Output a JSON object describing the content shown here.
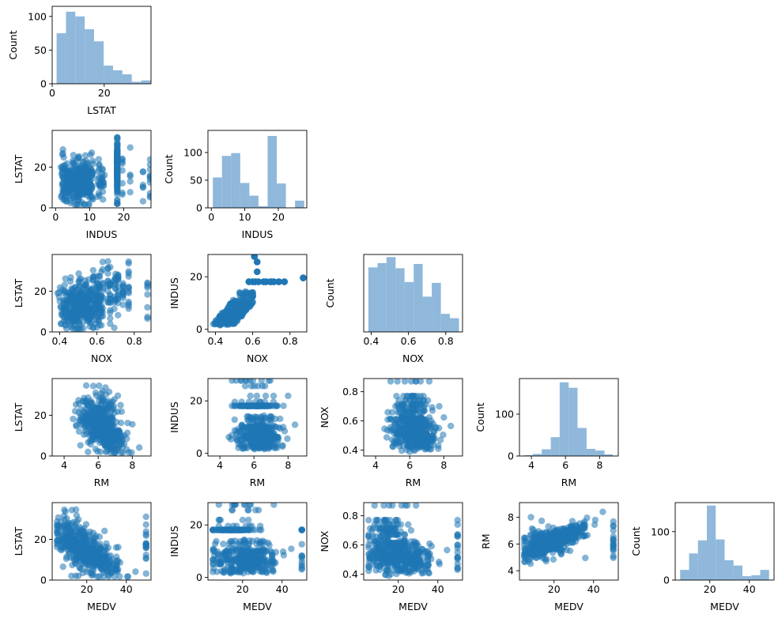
{
  "chart_data": {
    "type": "pairplot",
    "layout": "lower-triangle",
    "variables": [
      "LSTAT",
      "INDUS",
      "NOX",
      "RM",
      "MEDV"
    ],
    "diag_ylabel": "Count",
    "colors": {
      "hist": "#8fb8db",
      "point": "#1f77b4",
      "point_opacity": 0.55
    },
    "panels": [
      {
        "row": 0,
        "col": 0,
        "kind": "hist",
        "xlabel": "LSTAT",
        "ylabel": "Count",
        "xlim": [
          0,
          38
        ],
        "ylim": [
          0,
          115
        ],
        "xticks": [
          0,
          20
        ],
        "yticks": [
          0,
          50,
          100
        ],
        "bins": [
          1.7,
          5.3,
          8.9,
          12.5,
          16.1,
          19.8,
          23.4,
          27.0,
          30.6,
          34.2,
          37.8
        ],
        "counts": [
          75,
          107,
          100,
          81,
          63,
          27,
          20,
          14,
          3,
          5
        ]
      },
      {
        "row": 1,
        "col": 0,
        "kind": "scatter",
        "xvar": "INDUS",
        "yvar": "LSTAT",
        "xlabel": "INDUS",
        "ylabel": "LSTAT",
        "xlim": [
          -1,
          28
        ],
        "ylim": [
          0,
          38
        ],
        "xticks": [
          0,
          10,
          20
        ],
        "yticks": [
          0,
          20
        ]
      },
      {
        "row": 1,
        "col": 1,
        "kind": "hist",
        "xlabel": "INDUS",
        "ylabel": "Count",
        "xlim": [
          -1,
          28.5
        ],
        "ylim": [
          0,
          140
        ],
        "xticks": [
          0,
          10,
          20
        ],
        "yticks": [
          0,
          50,
          100
        ],
        "bins": [
          0.46,
          3.19,
          5.91,
          8.64,
          11.37,
          14.09,
          16.82,
          19.55,
          22.27,
          25.0,
          27.74
        ],
        "counts": [
          55,
          94,
          99,
          45,
          22,
          3,
          130,
          44,
          0,
          13
        ]
      },
      {
        "row": 2,
        "col": 0,
        "kind": "scatter",
        "xvar": "NOX",
        "yvar": "LSTAT",
        "xlabel": "NOX",
        "ylabel": "LSTAT",
        "xlim": [
          0.36,
          0.89
        ],
        "ylim": [
          0,
          38
        ],
        "xticks": [
          0.4,
          0.6,
          0.8
        ],
        "yticks": [
          0,
          20
        ]
      },
      {
        "row": 2,
        "col": 1,
        "kind": "scatter",
        "xvar": "NOX",
        "yvar": "INDUS",
        "xlabel": "NOX",
        "ylabel": "INDUS",
        "xlim": [
          0.36,
          0.89
        ],
        "ylim": [
          -1,
          28.5
        ],
        "xticks": [
          0.4,
          0.6,
          0.8
        ],
        "yticks": [
          0,
          20
        ]
      },
      {
        "row": 2,
        "col": 2,
        "kind": "hist",
        "xlabel": "NOX",
        "ylabel": "Count",
        "xlim": [
          0.36,
          0.89
        ],
        "ylim": [
          0,
          90
        ],
        "xticks": [
          0.4,
          0.6,
          0.8
        ],
        "yticks": [],
        "bins": [
          0.385,
          0.434,
          0.482,
          0.531,
          0.579,
          0.628,
          0.676,
          0.725,
          0.774,
          0.822,
          0.871
        ],
        "counts": [
          75,
          80,
          87,
          74,
          58,
          79,
          41,
          57,
          21,
          16
        ]
      },
      {
        "row": 3,
        "col": 0,
        "kind": "scatter",
        "xvar": "RM",
        "yvar": "LSTAT",
        "xlabel": "RM",
        "ylabel": "LSTAT",
        "xlim": [
          3.3,
          9.1
        ],
        "ylim": [
          0,
          38
        ],
        "xticks": [
          4,
          6,
          8
        ],
        "yticks": [
          0,
          20
        ]
      },
      {
        "row": 3,
        "col": 1,
        "kind": "scatter",
        "xvar": "RM",
        "yvar": "INDUS",
        "xlabel": "RM",
        "ylabel": "INDUS",
        "xlim": [
          3.3,
          9.1
        ],
        "ylim": [
          -1,
          28.5
        ],
        "xticks": [
          4,
          6,
          8
        ],
        "yticks": [
          0,
          20
        ]
      },
      {
        "row": 3,
        "col": 2,
        "kind": "scatter",
        "xvar": "RM",
        "yvar": "NOX",
        "xlabel": "RM",
        "ylabel": "NOX",
        "xlim": [
          3.3,
          9.1
        ],
        "ylim": [
          0.36,
          0.89
        ],
        "xticks": [
          4,
          6,
          8
        ],
        "yticks": [
          0.4,
          0.6,
          0.8
        ]
      },
      {
        "row": 3,
        "col": 3,
        "kind": "hist",
        "xlabel": "RM",
        "ylabel": "Count",
        "xlim": [
          3.3,
          9.1
        ],
        "ylim": [
          0,
          185
        ],
        "xticks": [
          4,
          6,
          8
        ],
        "yticks": [
          0,
          100
        ],
        "bins": [
          3.56,
          4.09,
          4.61,
          5.14,
          5.66,
          6.19,
          6.71,
          7.24,
          7.76,
          8.29,
          8.78
        ],
        "counts": [
          2,
          5,
          16,
          45,
          176,
          163,
          67,
          17,
          13,
          4
        ]
      },
      {
        "row": 4,
        "col": 0,
        "kind": "scatter",
        "xvar": "MEDV",
        "yvar": "LSTAT",
        "xlabel": "MEDV",
        "ylabel": "LSTAT",
        "xlim": [
          2.5,
          52.5
        ],
        "ylim": [
          0,
          38
        ],
        "xticks": [
          20,
          40
        ],
        "yticks": [
          0,
          20
        ]
      },
      {
        "row": 4,
        "col": 1,
        "kind": "scatter",
        "xvar": "MEDV",
        "yvar": "INDUS",
        "xlabel": "MEDV",
        "ylabel": "INDUS",
        "xlim": [
          2.5,
          52.5
        ],
        "ylim": [
          -1,
          28.5
        ],
        "xticks": [
          20,
          40
        ],
        "yticks": [
          0,
          20
        ]
      },
      {
        "row": 4,
        "col": 2,
        "kind": "scatter",
        "xvar": "MEDV",
        "yvar": "NOX",
        "xlabel": "MEDV",
        "ylabel": "NOX",
        "xlim": [
          2.5,
          52.5
        ],
        "ylim": [
          0.36,
          0.89
        ],
        "xticks": [
          20,
          40
        ],
        "yticks": [
          0.4,
          0.6,
          0.8
        ]
      },
      {
        "row": 4,
        "col": 3,
        "kind": "scatter",
        "xvar": "MEDV",
        "yvar": "RM",
        "xlabel": "MEDV",
        "ylabel": "RM",
        "xlim": [
          2.5,
          52.5
        ],
        "ylim": [
          3.3,
          9.1
        ],
        "xticks": [
          20,
          40
        ],
        "yticks": [
          4,
          6,
          8
        ]
      },
      {
        "row": 4,
        "col": 4,
        "kind": "hist",
        "xlabel": "MEDV",
        "ylabel": "Count",
        "xlim": [
          2.5,
          52.5
        ],
        "ylim": [
          0,
          160
        ],
        "xticks": [
          20,
          40
        ],
        "yticks": [
          0,
          100
        ],
        "bins": [
          5,
          9.5,
          14,
          18.5,
          23,
          27.5,
          32,
          36.5,
          41,
          45.5,
          50
        ],
        "counts": [
          21,
          55,
          82,
          154,
          84,
          41,
          30,
          8,
          10,
          21
        ]
      }
    ]
  }
}
